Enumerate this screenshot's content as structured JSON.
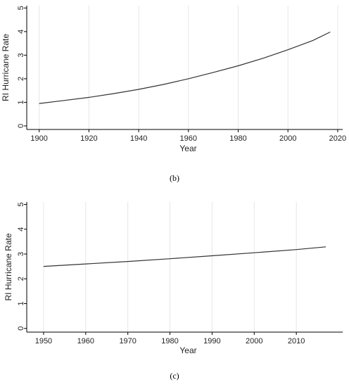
{
  "chart_data": [
    {
      "type": "line",
      "caption": "(b)",
      "xlabel": "Year",
      "ylabel": "RI Hurricane Rate",
      "xlim": [
        1895,
        2022
      ],
      "ylim": [
        -0.15,
        5.1
      ],
      "xticks": [
        1900,
        1920,
        1940,
        1960,
        1980,
        2000,
        2020
      ],
      "yticks": [
        0,
        1,
        2,
        3,
        4,
        5
      ],
      "grid": "vertical",
      "series": [
        {
          "x": [
            1900,
            1910,
            1920,
            1930,
            1940,
            1950,
            1960,
            1970,
            1980,
            1990,
            2000,
            2010,
            2017
          ],
          "y": [
            0.95,
            1.08,
            1.21,
            1.37,
            1.55,
            1.76,
            2.0,
            2.27,
            2.55,
            2.87,
            3.23,
            3.62,
            3.98
          ]
        }
      ]
    },
    {
      "type": "line",
      "caption": "(c)",
      "xlabel": "Year",
      "ylabel": "RI Hurricane Rate",
      "xlim": [
        1946,
        2021
      ],
      "ylim": [
        -0.15,
        5.1
      ],
      "xticks": [
        1950,
        1960,
        1970,
        1980,
        1990,
        2000,
        2010
      ],
      "yticks": [
        0,
        1,
        2,
        3,
        4,
        5
      ],
      "grid": "vertical",
      "series": [
        {
          "x": [
            1950,
            1960,
            1970,
            1980,
            1990,
            2000,
            2010,
            2017
          ],
          "y": [
            2.5,
            2.6,
            2.7,
            2.81,
            2.93,
            3.05,
            3.18,
            3.29
          ]
        }
      ]
    }
  ]
}
